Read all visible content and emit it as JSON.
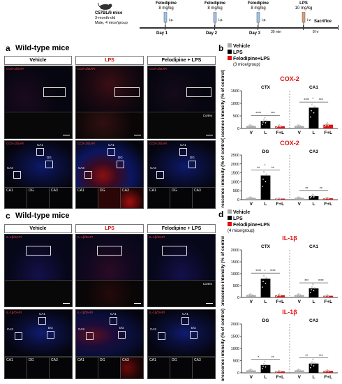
{
  "timeline": {
    "mouse_lines": [
      "C57BL/6 mice",
      "3-month-old",
      "Male, 4 mice/group"
    ],
    "steps": [
      {
        "drug": "Felodipine",
        "dose": "8 mg/kg",
        "route": "i.p.",
        "day": "Day 1"
      },
      {
        "drug": "Felodipine",
        "dose": "8 mg/kg",
        "route": "i.p.",
        "day": "Day 2"
      },
      {
        "drug": "Felodipine",
        "dose": "8 mg/kg",
        "route": "i.p.",
        "day": "Day 3"
      },
      {
        "drug": "LPS",
        "dose": "10 mg/kg",
        "route": "i.v.",
        "day": ""
      }
    ],
    "gap1": "30 min",
    "gap2": "8 hr",
    "end": "Sacrifice"
  },
  "panel_a": {
    "letter": "a",
    "title": "Wild-type mice",
    "columns": [
      "Vehicle",
      "LPS",
      "Felodipine + LPS"
    ],
    "cortex_stain": "COX-2/DAPI",
    "cortex_label": "Cortex",
    "hippo_labels": [
      "CA1",
      "DG",
      "CA3"
    ]
  },
  "panel_c": {
    "letter": "c",
    "title": "Wild-type mice",
    "columns": [
      "Vehicle",
      "LPS",
      "Felodipine + LPS"
    ],
    "cortex_stain": "IL-1β/DAPI",
    "cortex_label": "Cortex",
    "hippo_labels": [
      "CA1",
      "DG",
      "CA3"
    ]
  },
  "panel_b": {
    "letter": "b",
    "legend": [
      "Vehicle",
      "LPS",
      "Felodipine+LPS"
    ],
    "legend_note": "(3 mice/group)",
    "colors": {
      "vehicle": "#aaaaaa",
      "lps": "#000000",
      "felo": "#e01010"
    }
  },
  "panel_d": {
    "letter": "d",
    "legend": [
      "Vehicle",
      "LPS",
      "Felodipine+LPS"
    ],
    "legend_note": "(4 mice/group)"
  },
  "chart_data": [
    {
      "type": "bar",
      "title": "COX-2",
      "ylabel": "Fluorescence intensity (% of control)",
      "ylim": [
        0,
        1500
      ],
      "yticks": [
        0,
        500,
        1000,
        1500
      ],
      "groups": [
        {
          "name": "CTX",
          "categories": [
            "V",
            "L",
            "F+L"
          ],
          "values": [
            100,
            300,
            90
          ],
          "sig": [
            "****",
            "***"
          ]
        },
        {
          "name": "CA1",
          "categories": [
            "V",
            "L",
            "F+L"
          ],
          "values": [
            100,
            830,
            150
          ],
          "sig": [
            "****",
            "***"
          ]
        }
      ]
    },
    {
      "type": "bar",
      "title": "COX-2",
      "ylabel": "Fluorescence intensity (% of control)",
      "ylim": [
        0,
        2500
      ],
      "yticks": [
        0,
        500,
        1000,
        1500,
        2000,
        2500
      ],
      "groups": [
        {
          "name": "DG",
          "categories": [
            "V",
            "L",
            "F+L"
          ],
          "values": [
            100,
            1350,
            60
          ],
          "sig": [
            "**",
            "**"
          ]
        },
        {
          "name": "CA3",
          "categories": [
            "V",
            "L",
            "F+L"
          ],
          "values": [
            100,
            200,
            80
          ],
          "sig": [
            "**",
            "**"
          ]
        }
      ]
    },
    {
      "type": "bar",
      "title": "IL-1β",
      "ylabel": "Fluorescence intensity (% of control)",
      "ylim": [
        0,
        2000
      ],
      "yticks": [
        0,
        500,
        1000,
        1500,
        2000
      ],
      "groups": [
        {
          "name": "CTX",
          "categories": [
            "V",
            "L",
            "F+L"
          ],
          "values": [
            100,
            790,
            90
          ],
          "sig": [
            "****",
            "****"
          ]
        },
        {
          "name": "CA1",
          "categories": [
            "V",
            "L",
            "F+L"
          ],
          "values": [
            100,
            380,
            70
          ],
          "sig": [
            "***",
            "****"
          ]
        }
      ]
    },
    {
      "type": "bar",
      "title": "IL-1β",
      "ylabel": "Fluorescence intensity (% of control)",
      "ylim": [
        0,
        2000
      ],
      "yticks": [
        0,
        500,
        1000,
        1500,
        2000
      ],
      "groups": [
        {
          "name": "DG",
          "categories": [
            "V",
            "L",
            "F+L"
          ],
          "values": [
            100,
            320,
            60
          ],
          "sig": [
            "*",
            "**"
          ]
        },
        {
          "name": "CA3",
          "categories": [
            "V",
            "L",
            "F+L"
          ],
          "values": [
            100,
            380,
            80
          ],
          "sig": [
            "**",
            "***"
          ]
        }
      ]
    }
  ]
}
